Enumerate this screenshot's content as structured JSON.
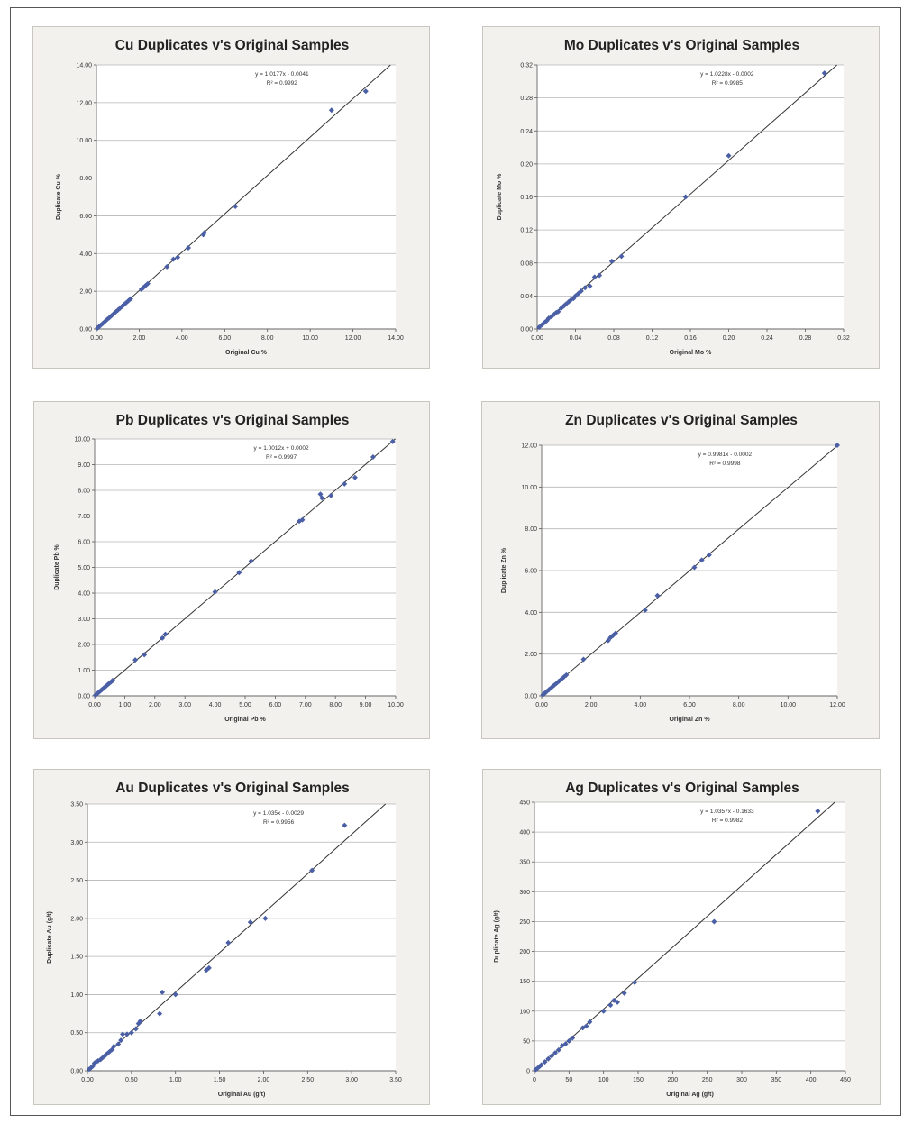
{
  "marker_color": "#4a5fa5",
  "line_color": "#333333",
  "grid_color": "#b5b5b5",
  "chart_data": [
    {
      "type": "scatter",
      "title": "Cu Duplicates v's Original Samples",
      "xlabel": "Original Cu %",
      "ylabel": "Duplicate Cu %",
      "xlim": [
        0,
        14
      ],
      "ylim": [
        0,
        14
      ],
      "xticks": [
        "0.00",
        "2.00",
        "4.00",
        "6.00",
        "8.00",
        "10.00",
        "12.00",
        "14.00"
      ],
      "yticks": [
        "0.00",
        "2.00",
        "4.00",
        "6.00",
        "8.00",
        "10.00",
        "12.00",
        "14.00"
      ],
      "grid": "horizontal",
      "equation": "y = 1.0177x - 0.0041",
      "r2": "R² = 0.9992",
      "trend": {
        "slope": 1.0177,
        "intercept": -0.0041
      },
      "points": [
        [
          0.05,
          0.05
        ],
        [
          0.1,
          0.1
        ],
        [
          0.2,
          0.2
        ],
        [
          0.3,
          0.3
        ],
        [
          0.4,
          0.4
        ],
        [
          0.5,
          0.5
        ],
        [
          0.6,
          0.6
        ],
        [
          0.7,
          0.7
        ],
        [
          0.8,
          0.8
        ],
        [
          0.9,
          0.9
        ],
        [
          1.0,
          1.0
        ],
        [
          1.1,
          1.1
        ],
        [
          1.2,
          1.2
        ],
        [
          1.3,
          1.3
        ],
        [
          1.4,
          1.4
        ],
        [
          1.5,
          1.5
        ],
        [
          1.6,
          1.6
        ],
        [
          2.1,
          2.1
        ],
        [
          2.2,
          2.2
        ],
        [
          2.3,
          2.3
        ],
        [
          2.4,
          2.4
        ],
        [
          3.3,
          3.3
        ],
        [
          3.6,
          3.7
        ],
        [
          3.8,
          3.8
        ],
        [
          4.3,
          4.3
        ],
        [
          5.0,
          5.0
        ],
        [
          5.05,
          5.1
        ],
        [
          6.5,
          6.5
        ],
        [
          11.0,
          11.6
        ],
        [
          12.6,
          12.6
        ]
      ]
    },
    {
      "type": "scatter",
      "title": "Mo Duplicates v's Original Samples",
      "xlabel": "Original Mo %",
      "ylabel": "Duplicate Mo %",
      "xlim": [
        0,
        0.32
      ],
      "ylim": [
        0,
        0.32
      ],
      "xticks": [
        "0.00",
        "0.04",
        "0.08",
        "0.12",
        "0.16",
        "0.20",
        "0.24",
        "0.28",
        "0.32"
      ],
      "yticks": [
        "0.00",
        "0.04",
        "0.08",
        "0.12",
        "0.16",
        "0.20",
        "0.24",
        "0.28",
        "0.32"
      ],
      "grid": "horizontal",
      "equation": "y = 1.0228x - 0.0002",
      "r2": "R² = 0.9985",
      "trend": {
        "slope": 1.0228,
        "intercept": -0.0002
      },
      "points": [
        [
          0.002,
          0.002
        ],
        [
          0.005,
          0.005
        ],
        [
          0.008,
          0.008
        ],
        [
          0.01,
          0.01
        ],
        [
          0.012,
          0.013
        ],
        [
          0.015,
          0.015
        ],
        [
          0.018,
          0.018
        ],
        [
          0.02,
          0.02
        ],
        [
          0.022,
          0.021
        ],
        [
          0.025,
          0.025
        ],
        [
          0.028,
          0.028
        ],
        [
          0.03,
          0.03
        ],
        [
          0.033,
          0.033
        ],
        [
          0.035,
          0.035
        ],
        [
          0.038,
          0.037
        ],
        [
          0.04,
          0.04
        ],
        [
          0.043,
          0.043
        ],
        [
          0.046,
          0.046
        ],
        [
          0.05,
          0.05
        ],
        [
          0.055,
          0.052
        ],
        [
          0.06,
          0.063
        ],
        [
          0.065,
          0.065
        ],
        [
          0.078,
          0.082
        ],
        [
          0.088,
          0.088
        ],
        [
          0.155,
          0.16
        ],
        [
          0.2,
          0.21
        ],
        [
          0.3,
          0.31
        ]
      ]
    },
    {
      "type": "scatter",
      "title": "Pb Duplicates v's Original Samples",
      "xlabel": "Original Pb %",
      "ylabel": "Duplicate Pb %",
      "xlim": [
        0,
        10
      ],
      "ylim": [
        0,
        10
      ],
      "xticks": [
        "0.00",
        "1.00",
        "2.00",
        "3.00",
        "4.00",
        "5.00",
        "6.00",
        "7.00",
        "8.00",
        "9.00",
        "10.00"
      ],
      "yticks": [
        "0.00",
        "1.00",
        "2.00",
        "3.00",
        "4.00",
        "5.00",
        "6.00",
        "7.00",
        "8.00",
        "9.00",
        "10.00"
      ],
      "grid": "horizontal",
      "equation": "y = 1.0012x + 0.0002",
      "r2": "R² = 0.9997",
      "trend": {
        "slope": 1.0012,
        "intercept": 0.0002
      },
      "points": [
        [
          0.03,
          0.03
        ],
        [
          0.06,
          0.06
        ],
        [
          0.1,
          0.1
        ],
        [
          0.15,
          0.15
        ],
        [
          0.2,
          0.2
        ],
        [
          0.25,
          0.25
        ],
        [
          0.3,
          0.3
        ],
        [
          0.35,
          0.35
        ],
        [
          0.4,
          0.4
        ],
        [
          0.45,
          0.45
        ],
        [
          0.5,
          0.5
        ],
        [
          0.55,
          0.55
        ],
        [
          0.6,
          0.6
        ],
        [
          1.35,
          1.4
        ],
        [
          1.65,
          1.6
        ],
        [
          2.25,
          2.25
        ],
        [
          2.35,
          2.4
        ],
        [
          4.0,
          4.05
        ],
        [
          4.8,
          4.8
        ],
        [
          5.2,
          5.25
        ],
        [
          6.8,
          6.8
        ],
        [
          6.9,
          6.85
        ],
        [
          7.5,
          7.85
        ],
        [
          7.55,
          7.7
        ],
        [
          7.85,
          7.8
        ],
        [
          8.3,
          8.25
        ],
        [
          8.65,
          8.5
        ],
        [
          9.25,
          9.3
        ],
        [
          9.9,
          9.9
        ]
      ]
    },
    {
      "type": "scatter",
      "title": "Zn Duplicates v's Original Samples",
      "xlabel": "Original Zn %",
      "ylabel": "Duplicate Zn %",
      "xlim": [
        0,
        12
      ],
      "ylim": [
        0,
        12
      ],
      "xticks": [
        "0.00",
        "2.00",
        "4.00",
        "6.00",
        "8.00",
        "10.00",
        "12.00"
      ],
      "yticks": [
        "0.00",
        "2.00",
        "4.00",
        "6.00",
        "8.00",
        "10.00",
        "12.00"
      ],
      "grid": "horizontal",
      "equation": "y = 0.9981x - 0.0002",
      "r2": "R² = 0.9998",
      "trend": {
        "slope": 0.9981,
        "intercept": -0.0002
      },
      "points": [
        [
          0.05,
          0.05
        ],
        [
          0.1,
          0.1
        ],
        [
          0.15,
          0.15
        ],
        [
          0.2,
          0.2
        ],
        [
          0.3,
          0.3
        ],
        [
          0.4,
          0.4
        ],
        [
          0.5,
          0.5
        ],
        [
          0.6,
          0.6
        ],
        [
          0.7,
          0.7
        ],
        [
          0.8,
          0.8
        ],
        [
          0.9,
          0.9
        ],
        [
          1.0,
          1.0
        ],
        [
          1.7,
          1.75
        ],
        [
          2.7,
          2.65
        ],
        [
          2.8,
          2.8
        ],
        [
          2.9,
          2.9
        ],
        [
          3.0,
          3.0
        ],
        [
          4.2,
          4.1
        ],
        [
          4.7,
          4.8
        ],
        [
          6.2,
          6.15
        ],
        [
          6.5,
          6.5
        ],
        [
          6.8,
          6.75
        ],
        [
          12.0,
          12.0
        ]
      ]
    },
    {
      "type": "scatter",
      "title": "Au Duplicates v's Original Samples",
      "xlabel": "Original Au (g/t)",
      "ylabel": "Duplicate Au (g/t)",
      "xlim": [
        0,
        3.5
      ],
      "ylim": [
        0,
        3.5
      ],
      "xticks": [
        "0.00",
        "0.50",
        "1.00",
        "1.50",
        "2.00",
        "2.50",
        "3.00",
        "3.50"
      ],
      "yticks": [
        "0.00",
        "0.50",
        "1.00",
        "1.50",
        "2.00",
        "2.50",
        "3.00",
        "3.50"
      ],
      "grid": "horizontal",
      "equation": "y = 1.035x - 0.0029",
      "r2": "R² = 0.9956",
      "trend": {
        "slope": 1.035,
        "intercept": -0.0029
      },
      "points": [
        [
          0.02,
          0.02
        ],
        [
          0.04,
          0.04
        ],
        [
          0.06,
          0.06
        ],
        [
          0.08,
          0.1
        ],
        [
          0.1,
          0.12
        ],
        [
          0.12,
          0.13
        ],
        [
          0.15,
          0.15
        ],
        [
          0.18,
          0.18
        ],
        [
          0.2,
          0.2
        ],
        [
          0.22,
          0.22
        ],
        [
          0.25,
          0.25
        ],
        [
          0.28,
          0.28
        ],
        [
          0.3,
          0.32
        ],
        [
          0.35,
          0.35
        ],
        [
          0.38,
          0.4
        ],
        [
          0.4,
          0.48
        ],
        [
          0.45,
          0.48
        ],
        [
          0.5,
          0.5
        ],
        [
          0.55,
          0.55
        ],
        [
          0.58,
          0.62
        ],
        [
          0.6,
          0.65
        ],
        [
          0.82,
          0.75
        ],
        [
          0.85,
          1.03
        ],
        [
          1.0,
          1.0
        ],
        [
          1.35,
          1.32
        ],
        [
          1.38,
          1.35
        ],
        [
          1.6,
          1.68
        ],
        [
          1.85,
          1.95
        ],
        [
          2.02,
          2.0
        ],
        [
          2.55,
          2.63
        ],
        [
          2.92,
          3.22
        ]
      ]
    },
    {
      "type": "scatter",
      "title": "Ag Duplicates v's Original Samples",
      "xlabel": "Original Ag (g/t)",
      "ylabel": "Duplicate Ag (g/t)",
      "xlim": [
        0,
        450
      ],
      "ylim": [
        0,
        450
      ],
      "xticks": [
        "0",
        "50",
        "100",
        "150",
        "200",
        "250",
        "300",
        "350",
        "400",
        "450"
      ],
      "yticks": [
        "0",
        "50",
        "100",
        "150",
        "200",
        "250",
        "300",
        "350",
        "400",
        "450"
      ],
      "grid": "horizontal",
      "equation": "y = 1.0357x - 0.1633",
      "r2": "R² = 0.9982",
      "trend": {
        "slope": 1.0357,
        "intercept": -0.1633
      },
      "points": [
        [
          2,
          2
        ],
        [
          5,
          5
        ],
        [
          8,
          8
        ],
        [
          10,
          10
        ],
        [
          15,
          15
        ],
        [
          20,
          20
        ],
        [
          25,
          25
        ],
        [
          30,
          30
        ],
        [
          35,
          35
        ],
        [
          40,
          42
        ],
        [
          45,
          45
        ],
        [
          50,
          50
        ],
        [
          55,
          55
        ],
        [
          70,
          72
        ],
        [
          75,
          75
        ],
        [
          80,
          82
        ],
        [
          100,
          100
        ],
        [
          110,
          110
        ],
        [
          115,
          118
        ],
        [
          120,
          115
        ],
        [
          130,
          130
        ],
        [
          145,
          148
        ],
        [
          260,
          250
        ],
        [
          410,
          435
        ]
      ]
    }
  ]
}
